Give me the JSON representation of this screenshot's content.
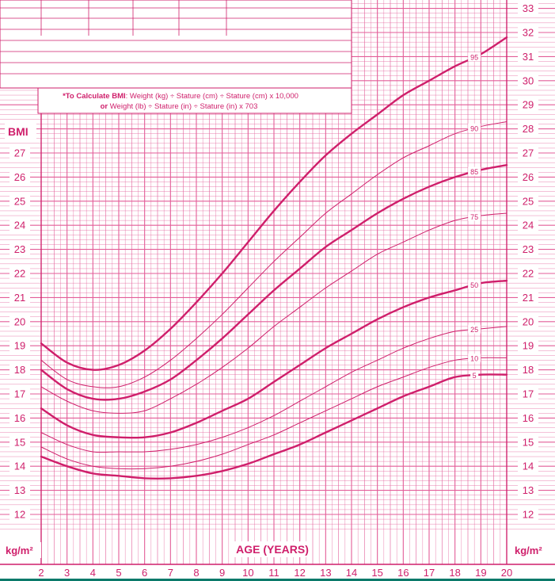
{
  "chart_data": {
    "type": "line",
    "title": "",
    "formula": {
      "line1_bold": "*To Calculate BMI",
      "line1_rest": ": Weight (kg) ÷ Stature (cm) ÷ Stature (cm) x 10,000",
      "line2_bold": "or",
      "line2_rest": " Weight (lb) ÷ Stature (in) ÷ Stature (in) x 703"
    },
    "left_axis_label": "BMI",
    "unit_label_left": "kg/m²",
    "unit_label_right": "kg/m²",
    "xlabel": "AGE (YEARS)",
    "xlim": [
      2,
      20
    ],
    "ylim_left": [
      12,
      27
    ],
    "ylim_right": [
      12,
      33
    ],
    "x_ticks": [
      2,
      3,
      4,
      5,
      6,
      7,
      8,
      9,
      10,
      11,
      12,
      13,
      14,
      15,
      16,
      17,
      18,
      19,
      20
    ],
    "y_ticks_left": [
      12,
      13,
      14,
      15,
      16,
      17,
      18,
      19,
      20,
      21,
      22,
      23,
      24,
      25,
      26,
      27
    ],
    "y_ticks_right": [
      12,
      13,
      14,
      15,
      16,
      17,
      18,
      19,
      20,
      21,
      22,
      23,
      24,
      25,
      26,
      27,
      28,
      29,
      30,
      31,
      32,
      33
    ],
    "series": [
      {
        "name": "95",
        "weight": "bold",
        "x": [
          2,
          3,
          4,
          5,
          6,
          7,
          8,
          9,
          10,
          11,
          12,
          13,
          14,
          15,
          16,
          17,
          18,
          19,
          20
        ],
        "values": [
          19.1,
          18.3,
          18.0,
          18.2,
          18.8,
          19.7,
          20.8,
          22.0,
          23.3,
          24.6,
          25.8,
          26.9,
          27.8,
          28.6,
          29.4,
          30.0,
          30.6,
          31.1,
          31.8
        ]
      },
      {
        "name": "90",
        "weight": "thin",
        "x": [
          2,
          3,
          4,
          5,
          6,
          7,
          8,
          9,
          10,
          11,
          12,
          13,
          14,
          15,
          16,
          17,
          18,
          19,
          20
        ],
        "values": [
          18.4,
          17.6,
          17.3,
          17.3,
          17.7,
          18.4,
          19.3,
          20.3,
          21.4,
          22.5,
          23.5,
          24.5,
          25.3,
          26.1,
          26.8,
          27.3,
          27.8,
          28.1,
          28.3
        ]
      },
      {
        "name": "85",
        "weight": "bold",
        "x": [
          2,
          3,
          4,
          5,
          6,
          7,
          8,
          9,
          10,
          11,
          12,
          13,
          14,
          15,
          16,
          17,
          18,
          19,
          20
        ],
        "values": [
          18.0,
          17.2,
          16.8,
          16.8,
          17.1,
          17.6,
          18.4,
          19.3,
          20.3,
          21.3,
          22.2,
          23.1,
          23.8,
          24.5,
          25.1,
          25.6,
          26.0,
          26.3,
          26.5
        ]
      },
      {
        "name": "75",
        "weight": "thin",
        "x": [
          2,
          3,
          4,
          5,
          6,
          7,
          8,
          9,
          10,
          11,
          12,
          13,
          14,
          15,
          16,
          17,
          18,
          19,
          20
        ],
        "values": [
          17.3,
          16.7,
          16.3,
          16.2,
          16.3,
          16.8,
          17.4,
          18.1,
          18.9,
          19.8,
          20.6,
          21.4,
          22.1,
          22.8,
          23.3,
          23.8,
          24.2,
          24.4,
          24.5
        ]
      },
      {
        "name": "50",
        "weight": "bold",
        "x": [
          2,
          3,
          4,
          5,
          6,
          7,
          8,
          9,
          10,
          11,
          12,
          13,
          14,
          15,
          16,
          17,
          18,
          19,
          20
        ],
        "values": [
          16.4,
          15.7,
          15.3,
          15.2,
          15.2,
          15.4,
          15.8,
          16.3,
          16.8,
          17.5,
          18.2,
          18.9,
          19.5,
          20.1,
          20.6,
          21.0,
          21.3,
          21.6,
          21.7
        ]
      },
      {
        "name": "25",
        "weight": "thin",
        "x": [
          2,
          3,
          4,
          5,
          6,
          7,
          8,
          9,
          10,
          11,
          12,
          13,
          14,
          15,
          16,
          17,
          18,
          19,
          20
        ],
        "values": [
          15.4,
          14.9,
          14.6,
          14.6,
          14.6,
          14.7,
          14.9,
          15.2,
          15.6,
          16.1,
          16.7,
          17.3,
          17.9,
          18.4,
          18.9,
          19.3,
          19.6,
          19.7,
          19.8
        ]
      },
      {
        "name": "10",
        "weight": "thin",
        "x": [
          2,
          3,
          4,
          5,
          6,
          7,
          8,
          9,
          10,
          11,
          12,
          13,
          14,
          15,
          16,
          17,
          18,
          19,
          20
        ],
        "values": [
          14.8,
          14.3,
          14.0,
          13.9,
          13.9,
          14.0,
          14.2,
          14.5,
          14.9,
          15.3,
          15.8,
          16.3,
          16.8,
          17.3,
          17.7,
          18.1,
          18.4,
          18.5,
          18.5
        ]
      },
      {
        "name": "5",
        "weight": "bold",
        "x": [
          2,
          3,
          4,
          5,
          6,
          7,
          8,
          9,
          10,
          11,
          12,
          13,
          14,
          15,
          16,
          17,
          18,
          19,
          20
        ],
        "values": [
          14.4,
          14.0,
          13.7,
          13.6,
          13.5,
          13.5,
          13.6,
          13.8,
          14.1,
          14.5,
          14.9,
          15.4,
          15.9,
          16.4,
          16.9,
          17.3,
          17.7,
          17.8,
          17.8
        ]
      }
    ],
    "colors": {
      "line": "#cf1f6b",
      "grid": "#e35d98",
      "background": "#ffffff",
      "bottom_edge": "#0a7a6a"
    }
  }
}
